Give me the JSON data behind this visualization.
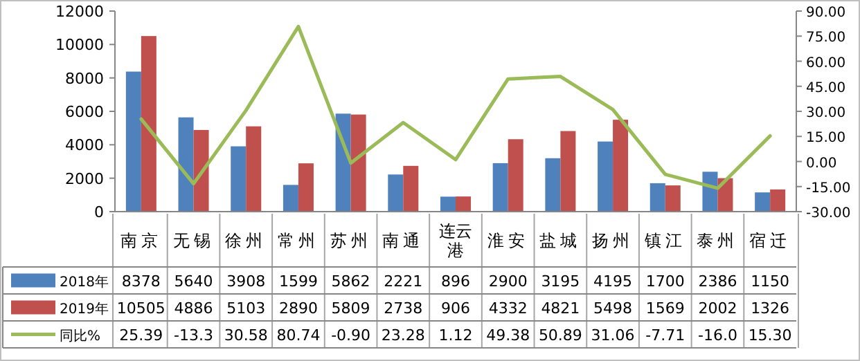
{
  "chart_data": {
    "type": "bar",
    "categories": [
      "南京",
      "无锡",
      "徐州",
      "常州",
      "苏州",
      "南通",
      "连云港",
      "淮安",
      "盐城",
      "扬州",
      "镇江",
      "泰州",
      "宿迁"
    ],
    "series": [
      {
        "name": "2018年",
        "color": "#4f81bd",
        "values": [
          8378,
          5640,
          3908,
          1599,
          5862,
          2221,
          896,
          2900,
          3195,
          4195,
          1700,
          2386,
          1150
        ],
        "value_labels": [
          "8378",
          "5640",
          "3908",
          "1599",
          "5862",
          "2221",
          "896",
          "2900",
          "3195",
          "4195",
          "1700",
          "2386",
          "1150"
        ]
      },
      {
        "name": "2019年",
        "color": "#c0504d",
        "values": [
          10505,
          4886,
          5103,
          2890,
          5809,
          2738,
          906,
          4332,
          4821,
          5498,
          1569,
          2002,
          1326
        ],
        "value_labels": [
          "10505",
          "4886",
          "5103",
          "2890",
          "5809",
          "2738",
          "906",
          "4332",
          "4821",
          "5498",
          "1569",
          "2002",
          "1326"
        ]
      },
      {
        "name": "同比%",
        "type": "line",
        "axis": "y2",
        "color": "#9bbb59",
        "marker": "none",
        "values": [
          25.39,
          -13.3,
          30.58,
          80.74,
          -0.9,
          23.28,
          1.12,
          49.38,
          50.89,
          31.06,
          -7.71,
          -16.0,
          15.3
        ],
        "value_labels": [
          "25.39",
          "-13.3",
          "30.58",
          "80.74",
          "-0.90",
          "23.28",
          "1.12",
          "49.38",
          "50.89",
          "31.06",
          "-7.71",
          "-16.0",
          "15.30"
        ]
      }
    ],
    "ylim": [
      0,
      12000
    ],
    "yticks": [
      0,
      2000,
      4000,
      6000,
      8000,
      10000,
      12000
    ],
    "y2lim": [
      -30,
      90
    ],
    "y2ticks": [
      {
        "value": -30,
        "label": "-30.00"
      },
      {
        "value": -15,
        "label": "-15.00"
      },
      {
        "value": 0,
        "label": "0.00"
      },
      {
        "value": 15,
        "label": "15.00"
      },
      {
        "value": 30,
        "label": "30.00"
      },
      {
        "value": 45,
        "label": "45.00"
      },
      {
        "value": 60,
        "label": "60.00"
      },
      {
        "value": 75,
        "label": "75.00"
      },
      {
        "value": 90,
        "label": "90.00"
      }
    ],
    "legend": "bottom",
    "grid": false
  }
}
